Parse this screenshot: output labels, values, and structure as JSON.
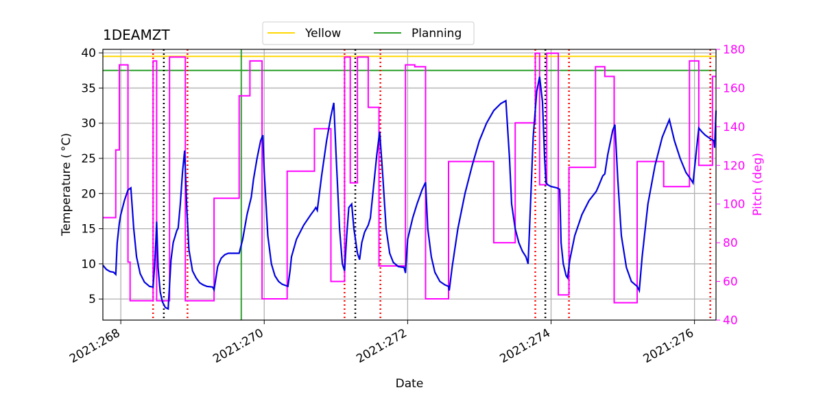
{
  "chart_data": {
    "type": "line",
    "title": "1DEAMZT",
    "xlabel": "Date",
    "ylabel": "Temperature ($^\\circ$C)",
    "ylabel_display": "Temperature ( °C)",
    "y2label": "Pitch (deg)",
    "xlim": [
      267.75,
      276.3
    ],
    "ylim": [
      2.0,
      40.5
    ],
    "y2lim": [
      40,
      180
    ],
    "xticks": [
      268,
      270,
      272,
      274,
      276
    ],
    "xtick_labels": [
      "2021:268",
      "2021:270",
      "2021:272",
      "2021:274",
      "2021:276"
    ],
    "yticks": [
      5,
      10,
      15,
      20,
      25,
      30,
      35,
      40
    ],
    "y2ticks": [
      40,
      60,
      80,
      100,
      120,
      140,
      160,
      180
    ],
    "grid": true,
    "legend": {
      "placement": "top-center",
      "entries": [
        {
          "name": "Yellow",
          "color": "#ffd700"
        },
        {
          "name": "Planning",
          "color": "#2ca02c"
        }
      ]
    },
    "colors": {
      "temperature": "#0000e0",
      "pitch": "#ff00ff",
      "yellow": "#ffd700",
      "planning": "#2ca02c",
      "red_marker": "#ff0000",
      "black_marker": "#000000"
    },
    "limits": {
      "yellow": 39.5,
      "planning": 37.5
    },
    "planning_start_x": 269.68,
    "red_dotted_x": [
      268.45,
      268.93,
      271.12,
      271.62,
      273.78,
      274.25,
      276.22
    ],
    "black_dotted_x": [
      268.6,
      271.27,
      273.92
    ],
    "series": [
      {
        "name": "Temperature",
        "axis": "left",
        "points": [
          [
            267.75,
            9.8
          ],
          [
            267.8,
            9.2
          ],
          [
            267.85,
            8.9
          ],
          [
            267.9,
            8.8
          ],
          [
            267.92,
            8.6
          ],
          [
            267.93,
            8.5
          ],
          [
            267.95,
            13.0
          ],
          [
            267.98,
            15.8
          ],
          [
            268.0,
            17.0
          ],
          [
            268.05,
            19.0
          ],
          [
            268.1,
            20.5
          ],
          [
            268.14,
            20.8
          ],
          [
            268.18,
            15.0
          ],
          [
            268.22,
            11.0
          ],
          [
            268.27,
            8.6
          ],
          [
            268.33,
            7.4
          ],
          [
            268.4,
            6.8
          ],
          [
            268.45,
            6.7
          ],
          [
            268.47,
            9.5
          ],
          [
            268.49,
            13.5
          ],
          [
            268.5,
            16.0
          ],
          [
            268.52,
            9.5
          ],
          [
            268.55,
            6.0
          ],
          [
            268.58,
            4.6
          ],
          [
            268.62,
            3.8
          ],
          [
            268.66,
            3.6
          ],
          [
            268.7,
            10.5
          ],
          [
            268.73,
            13.0
          ],
          [
            268.78,
            14.7
          ],
          [
            268.8,
            15.1
          ],
          [
            268.83,
            18.5
          ],
          [
            268.86,
            23.0
          ],
          [
            268.89,
            26.1
          ],
          [
            268.92,
            18.0
          ],
          [
            268.95,
            12.0
          ],
          [
            269.0,
            9.0
          ],
          [
            269.05,
            8.0
          ],
          [
            269.1,
            7.3
          ],
          [
            269.15,
            7.0
          ],
          [
            269.2,
            6.8
          ],
          [
            269.28,
            6.7
          ],
          [
            269.3,
            6.3
          ],
          [
            269.32,
            7.6
          ],
          [
            269.35,
            9.6
          ],
          [
            269.4,
            10.8
          ],
          [
            269.45,
            11.3
          ],
          [
            269.5,
            11.5
          ],
          [
            269.65,
            11.5
          ],
          [
            269.7,
            13.5
          ],
          [
            269.76,
            17.0
          ],
          [
            269.82,
            19.5
          ],
          [
            269.85,
            22.0
          ],
          [
            269.9,
            25.0
          ],
          [
            269.95,
            27.5
          ],
          [
            269.98,
            28.3
          ],
          [
            270.0,
            23.0
          ],
          [
            270.05,
            14.0
          ],
          [
            270.1,
            10.0
          ],
          [
            270.15,
            8.3
          ],
          [
            270.2,
            7.5
          ],
          [
            270.25,
            7.1
          ],
          [
            270.33,
            6.8
          ],
          [
            270.36,
            9.0
          ],
          [
            270.38,
            11.0
          ],
          [
            270.45,
            13.5
          ],
          [
            270.55,
            15.5
          ],
          [
            270.65,
            17.0
          ],
          [
            270.7,
            17.7
          ],
          [
            270.72,
            18.0
          ],
          [
            270.74,
            17.6
          ],
          [
            270.8,
            22.5
          ],
          [
            270.87,
            27.5
          ],
          [
            270.93,
            31.0
          ],
          [
            270.97,
            32.9
          ],
          [
            271.0,
            26.0
          ],
          [
            271.05,
            15.0
          ],
          [
            271.09,
            10.0
          ],
          [
            271.12,
            9.0
          ],
          [
            271.15,
            14.0
          ],
          [
            271.18,
            18.0
          ],
          [
            271.22,
            18.5
          ],
          [
            271.25,
            15.0
          ],
          [
            271.3,
            11.5
          ],
          [
            271.33,
            10.6
          ],
          [
            271.36,
            13.0
          ],
          [
            271.4,
            14.5
          ],
          [
            271.45,
            15.5
          ],
          [
            271.48,
            16.5
          ],
          [
            271.52,
            20.5
          ],
          [
            271.57,
            25.5
          ],
          [
            271.61,
            28.8
          ],
          [
            271.65,
            23.0
          ],
          [
            271.7,
            15.0
          ],
          [
            271.75,
            11.5
          ],
          [
            271.8,
            10.2
          ],
          [
            271.87,
            9.6
          ],
          [
            271.95,
            9.5
          ],
          [
            271.97,
            8.7
          ],
          [
            272.0,
            13.5
          ],
          [
            272.07,
            16.5
          ],
          [
            272.13,
            18.5
          ],
          [
            272.2,
            20.5
          ],
          [
            272.25,
            21.6
          ],
          [
            272.28,
            15.0
          ],
          [
            272.33,
            11.0
          ],
          [
            272.38,
            8.8
          ],
          [
            272.45,
            7.5
          ],
          [
            272.52,
            7.0
          ],
          [
            272.57,
            6.8
          ],
          [
            272.58,
            6.2
          ],
          [
            272.62,
            9.5
          ],
          [
            272.7,
            15.0
          ],
          [
            272.8,
            20.0
          ],
          [
            272.9,
            24.0
          ],
          [
            273.0,
            27.5
          ],
          [
            273.1,
            30.0
          ],
          [
            273.2,
            31.8
          ],
          [
            273.3,
            32.8
          ],
          [
            273.37,
            33.2
          ],
          [
            273.42,
            25.0
          ],
          [
            273.45,
            18.5
          ],
          [
            273.5,
            15.0
          ],
          [
            273.55,
            13.0
          ],
          [
            273.6,
            11.8
          ],
          [
            273.65,
            11.0
          ],
          [
            273.68,
            10.0
          ],
          [
            273.7,
            15.0
          ],
          [
            273.75,
            28.0
          ],
          [
            273.8,
            34.5
          ],
          [
            273.84,
            36.6
          ],
          [
            273.88,
            33.0
          ],
          [
            273.91,
            25.0
          ],
          [
            273.93,
            21.5
          ],
          [
            273.96,
            21.2
          ],
          [
            274.0,
            21.0
          ],
          [
            274.08,
            20.8
          ],
          [
            274.12,
            20.6
          ],
          [
            274.14,
            13.0
          ],
          [
            274.17,
            10.0
          ],
          [
            274.21,
            8.3
          ],
          [
            274.23,
            8.0
          ],
          [
            274.26,
            10.5
          ],
          [
            274.33,
            14.0
          ],
          [
            274.43,
            17.0
          ],
          [
            274.53,
            19.0
          ],
          [
            274.63,
            20.3
          ],
          [
            274.66,
            21.0
          ],
          [
            274.72,
            22.5
          ],
          [
            274.75,
            22.8
          ],
          [
            274.79,
            25.5
          ],
          [
            274.86,
            29.0
          ],
          [
            274.89,
            29.8
          ],
          [
            274.93,
            22.0
          ],
          [
            274.98,
            14.0
          ],
          [
            275.05,
            9.5
          ],
          [
            275.12,
            7.5
          ],
          [
            275.2,
            6.8
          ],
          [
            275.23,
            6.2
          ],
          [
            275.27,
            11.0
          ],
          [
            275.35,
            18.5
          ],
          [
            275.45,
            24.0
          ],
          [
            275.55,
            28.0
          ],
          [
            275.65,
            30.5
          ],
          [
            275.72,
            27.5
          ],
          [
            275.8,
            25.0
          ],
          [
            275.88,
            23.0
          ],
          [
            275.95,
            22.0
          ],
          [
            275.98,
            21.5
          ],
          [
            276.03,
            26.5
          ],
          [
            276.06,
            29.3
          ],
          [
            276.1,
            28.8
          ],
          [
            276.15,
            28.3
          ],
          [
            276.22,
            27.8
          ],
          [
            276.27,
            27.5
          ],
          [
            276.28,
            26.5
          ],
          [
            276.3,
            31.8
          ]
        ]
      },
      {
        "name": "Pitch",
        "axis": "right",
        "points": [
          [
            267.75,
            93
          ],
          [
            267.93,
            93
          ],
          [
            267.93,
            128
          ],
          [
            267.98,
            128
          ],
          [
            267.98,
            172
          ],
          [
            268.1,
            172
          ],
          [
            268.1,
            70
          ],
          [
            268.13,
            70
          ],
          [
            268.13,
            50
          ],
          [
            268.45,
            50
          ],
          [
            268.45,
            174
          ],
          [
            268.5,
            174
          ],
          [
            268.5,
            50
          ],
          [
            268.68,
            50
          ],
          [
            268.68,
            176
          ],
          [
            268.9,
            176
          ],
          [
            268.9,
            50
          ],
          [
            269.3,
            50
          ],
          [
            269.3,
            103
          ],
          [
            269.65,
            103
          ],
          [
            269.65,
            156
          ],
          [
            269.8,
            156
          ],
          [
            269.8,
            174
          ],
          [
            269.97,
            174
          ],
          [
            269.97,
            51
          ],
          [
            270.32,
            51
          ],
          [
            270.32,
            117
          ],
          [
            270.7,
            117
          ],
          [
            270.7,
            139
          ],
          [
            270.93,
            139
          ],
          [
            270.93,
            60
          ],
          [
            271.12,
            60
          ],
          [
            271.12,
            176
          ],
          [
            271.2,
            176
          ],
          [
            271.2,
            111
          ],
          [
            271.3,
            111
          ],
          [
            271.3,
            176
          ],
          [
            271.45,
            176
          ],
          [
            271.45,
            150
          ],
          [
            271.6,
            150
          ],
          [
            271.6,
            68
          ],
          [
            271.97,
            68
          ],
          [
            271.97,
            172
          ],
          [
            272.1,
            172
          ],
          [
            272.1,
            171
          ],
          [
            272.25,
            171
          ],
          [
            272.25,
            51
          ],
          [
            272.57,
            51
          ],
          [
            272.57,
            122
          ],
          [
            273.2,
            122
          ],
          [
            273.2,
            80
          ],
          [
            273.5,
            80
          ],
          [
            273.5,
            142
          ],
          [
            273.78,
            142
          ],
          [
            273.78,
            178
          ],
          [
            273.84,
            178
          ],
          [
            273.84,
            110
          ],
          [
            273.94,
            110
          ],
          [
            273.94,
            178
          ],
          [
            274.1,
            178
          ],
          [
            274.1,
            53
          ],
          [
            274.25,
            53
          ],
          [
            274.25,
            119
          ],
          [
            274.62,
            119
          ],
          [
            274.62,
            171
          ],
          [
            274.75,
            171
          ],
          [
            274.75,
            166
          ],
          [
            274.88,
            166
          ],
          [
            274.88,
            49
          ],
          [
            275.2,
            49
          ],
          [
            275.2,
            122
          ],
          [
            275.57,
            122
          ],
          [
            275.57,
            109
          ],
          [
            275.93,
            109
          ],
          [
            275.93,
            174
          ],
          [
            276.06,
            174
          ],
          [
            276.06,
            120
          ],
          [
            276.25,
            120
          ],
          [
            276.25,
            166
          ],
          [
            276.3,
            166
          ]
        ]
      }
    ]
  }
}
